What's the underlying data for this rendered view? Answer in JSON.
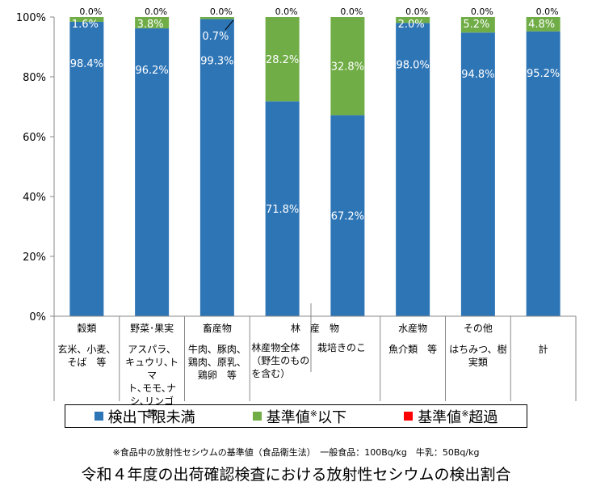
{
  "chart_data": {
    "type": "bar",
    "stacked": true,
    "categories": [
      "穀類",
      "野菜･果実",
      "畜産物",
      "林　産　物",
      "林　産　物",
      "水産物",
      "その他",
      "計"
    ],
    "forest_group_label": "林　産　物",
    "subcategories": [
      "玄米、小麦、そば　等",
      "アスパラ、キュウリ､トマト､モモ､ナシ､リンゴ　等",
      "牛肉、豚肉、鶏肉、原乳、鶏卵　等",
      "林産物全体（野生のものを含む）",
      "栽培きのこ",
      "魚介類　等",
      "はちみつ、樹実類",
      "計"
    ],
    "category_cells": [
      {
        "name": "穀類",
        "desc": [
          "玄米、小麦、",
          "そば　等"
        ]
      },
      {
        "name": "野菜･果実",
        "desc": [
          "アスパラ、",
          "キュウリ､トマ",
          "ト､モモ､ナ",
          "シ､リンゴ　等"
        ]
      },
      {
        "name": "畜産物",
        "desc": [
          "牛肉、豚肉、",
          "鶏肉、原乳、",
          "鶏卵　等"
        ]
      },
      {
        "name": "",
        "desc": []
      },
      {
        "name": "",
        "desc": []
      },
      {
        "name": "水産物",
        "desc": [
          "魚介類　等"
        ]
      },
      {
        "name": "その他",
        "desc": [
          "はちみつ、樹",
          "実類"
        ]
      },
      {
        "name": "",
        "desc": [
          "計"
        ]
      }
    ],
    "forest_sub_left": [
      "林産物全体",
      "（野生のもの",
      "を含む）"
    ],
    "forest_sub_right": "栽培きのこ",
    "series": [
      {
        "name": "検出下限未満",
        "color": "#2e75b6",
        "values": [
          98.4,
          96.2,
          99.3,
          71.8,
          67.2,
          98.0,
          94.8,
          95.2
        ]
      },
      {
        "name": "基準値※以下",
        "color": "#70ad47",
        "values": [
          1.6,
          3.8,
          0.7,
          28.2,
          32.8,
          2.0,
          5.2,
          4.8
        ]
      },
      {
        "name": "基準値※超過",
        "color": "#ff0000",
        "values": [
          0.0,
          0.0,
          0.0,
          0.0,
          0.0,
          0.0,
          0.0,
          0.0
        ]
      }
    ],
    "value_labels": {
      "blue": [
        "98.4%",
        "96.2%",
        "99.3%",
        "71.8%",
        "67.2%",
        "98.0%",
        "94.8%",
        "95.2%"
      ],
      "green": [
        "1.6%",
        "3.8%",
        "0.7%",
        "28.2%",
        "32.8%",
        "2.0%",
        "5.2%",
        "4.8%"
      ],
      "red": [
        "0.0%",
        "0.0%",
        "0.0%",
        "0.0%",
        "0.0%",
        "0.0%",
        "0.0%",
        "0.0%"
      ]
    },
    "y_ticks": [
      "0%",
      "20%",
      "40%",
      "60%",
      "80%",
      "100%"
    ],
    "ylim": [
      0,
      100
    ],
    "grid": false,
    "legend_position": "bottom",
    "title": "令和４年度の出荷確認検査における放射性セシウムの検出割合"
  },
  "legend": [
    {
      "label_main": "検出下限未満",
      "label_sup": "",
      "label_tail": "",
      "color": "#2e75b6"
    },
    {
      "label_main": "基準値",
      "label_sup": "※",
      "label_tail": "以下",
      "color": "#70ad47"
    },
    {
      "label_main": "基準値",
      "label_sup": "※",
      "label_tail": "超過",
      "color": "#ff0000"
    }
  ],
  "footnote": "※食品中の放射性セシウムの基準値（食品衛生法）　一般食品：100Bq/kg　牛乳：50Bq/kg",
  "title": "令和４年度の出荷確認検査における放射性セシウムの検出割合"
}
